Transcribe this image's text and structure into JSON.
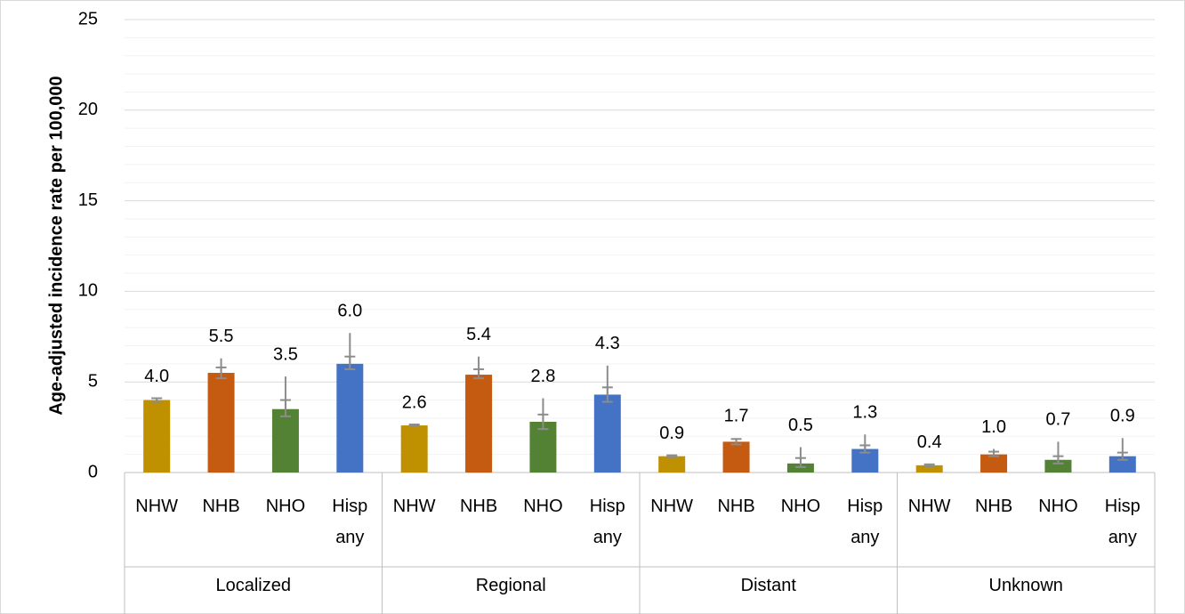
{
  "chart_data": {
    "type": "bar",
    "y_axis_label": "Age-adjusted incidence rate per 100,000",
    "categories": [
      "NHW",
      "NHB",
      "NHO",
      "Hisp any"
    ],
    "colors": [
      "#bf9000",
      "#c55a11",
      "#548235",
      "#4472c4"
    ],
    "ylim": [
      0,
      25
    ],
    "yticks": [
      0,
      5,
      10,
      15,
      20,
      25
    ],
    "minor_yticks": [
      1,
      2,
      3,
      4,
      6,
      7,
      8,
      9,
      11,
      12,
      13,
      14,
      16,
      17,
      18,
      19,
      21,
      22,
      23,
      24
    ],
    "grid": true,
    "groups": [
      {
        "name": "Localized",
        "values": [
          4.0,
          5.5,
          3.5,
          6.0
        ],
        "value_labels": [
          "4.0",
          "5.5",
          "3.5",
          "6.0"
        ],
        "error_low": [
          3.9,
          5.2,
          3.1,
          5.7
        ],
        "error_high": [
          4.1,
          5.8,
          4.0,
          6.4
        ],
        "whisker_high": [
          4.1,
          6.3,
          5.3,
          7.7
        ]
      },
      {
        "name": "Regional",
        "values": [
          2.6,
          5.4,
          2.8,
          4.3
        ],
        "value_labels": [
          "2.6",
          "5.4",
          "2.8",
          "4.3"
        ],
        "error_low": [
          2.55,
          5.2,
          2.4,
          3.9
        ],
        "error_high": [
          2.65,
          5.7,
          3.2,
          4.7
        ],
        "whisker_high": [
          2.65,
          6.4,
          4.1,
          5.9
        ]
      },
      {
        "name": "Distant",
        "values": [
          0.9,
          1.7,
          0.5,
          1.3
        ],
        "value_labels": [
          "0.9",
          "1.7",
          "0.5",
          "1.3"
        ],
        "error_low": [
          0.85,
          1.55,
          0.3,
          1.1
        ],
        "error_high": [
          0.95,
          1.85,
          0.8,
          1.5
        ],
        "whisker_high": [
          0.95,
          1.9,
          1.4,
          2.1
        ]
      },
      {
        "name": "Unknown",
        "values": [
          0.4,
          1.0,
          0.7,
          0.9
        ],
        "value_labels": [
          "0.4",
          "1.0",
          "0.7",
          "0.9"
        ],
        "error_low": [
          0.35,
          0.9,
          0.5,
          0.7
        ],
        "error_high": [
          0.45,
          1.15,
          0.9,
          1.1
        ],
        "whisker_high": [
          0.45,
          1.3,
          1.7,
          1.9
        ]
      }
    ]
  }
}
